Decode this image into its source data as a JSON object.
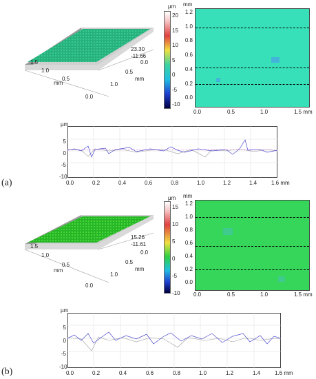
{
  "panel_a": {
    "label": "(a)",
    "surface": {
      "axis_labels": {
        "mm1": "mm",
        "mm2": "mm"
      },
      "ticks_left": [
        "1.5",
        "1.0",
        "0.5",
        "0.0"
      ],
      "ticks_right": [
        "1.0",
        "0.5",
        "0.0"
      ],
      "z_labels": [
        "23.30",
        "-11.66"
      ]
    },
    "colorbar": {
      "unit": "µm",
      "ticks": [
        "20",
        "15",
        "10",
        "5",
        "0",
        "-5",
        "-10"
      ]
    },
    "map": {
      "y_unit": "mm",
      "y_ticks": [
        "1.2",
        "1.0",
        "0.8",
        "0.6",
        "0.4",
        "0.2",
        "0.0"
      ],
      "x_ticks": [
        "0.0",
        "0.5",
        "1.0",
        "1.5 mm"
      ]
    },
    "profile": {
      "y_unit": "µm",
      "y_ticks": [
        "5",
        "0",
        "-5",
        "-10"
      ],
      "x_ticks": [
        "0.0",
        "0.2",
        "0.4",
        "0.6",
        "0.8",
        "1.0",
        "1.2",
        "1.4",
        "1.6 mm"
      ]
    }
  },
  "panel_b": {
    "label": "(b)",
    "surface": {
      "axis_labels": {
        "mm1": "mm",
        "mm2": "mm"
      },
      "ticks_left": [
        "1.5",
        "1.0",
        "0.5",
        "0.0"
      ],
      "ticks_right": [
        "1.0",
        "0.5",
        "0.0"
      ],
      "z_labels": [
        "15.26",
        "-11.61"
      ]
    },
    "colorbar": {
      "unit": "µm",
      "ticks": [
        "15",
        "10",
        "5",
        "0",
        "-5",
        "-10"
      ]
    },
    "map": {
      "y_unit": "mm",
      "y_ticks": [
        "1.2",
        "1.0",
        "0.8",
        "0.6",
        "0.4",
        "0.2",
        "0.0"
      ],
      "x_ticks": [
        "0.0",
        "0.5",
        "1.0",
        "1.5 mm"
      ]
    },
    "profile": {
      "y_unit": "µm",
      "y_ticks": [
        "5",
        "0",
        "-5",
        "-10"
      ],
      "x_ticks": [
        "0.0",
        "0.2",
        "0.4",
        "0.6",
        "0.8",
        "1.0",
        "1.2",
        "1.4",
        "1.6 mm"
      ]
    }
  },
  "colors": {
    "map_a": "#37e0b8",
    "map_b": "#35d65a",
    "profile_line": "#4a4ad0",
    "profile_grey": "#999999",
    "surface_a": "#2fbf8a",
    "surface_b": "#2ecc2e"
  }
}
